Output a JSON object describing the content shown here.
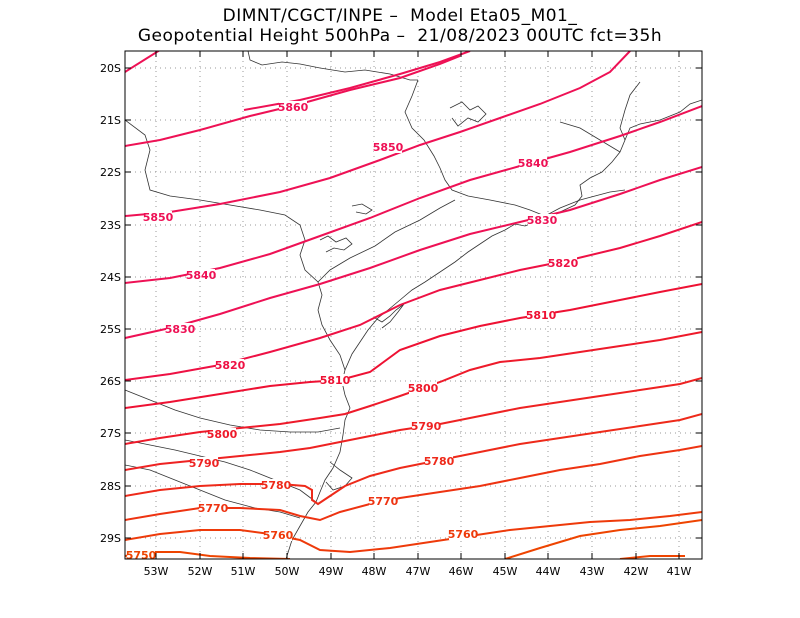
{
  "title": {
    "line1": "DIMNT/CGCT/INPE –  Model Eta05_M01_",
    "line2": "Geopotential Height 500hPa –  21/08/2023 00UTC fct=35h"
  },
  "axes": {
    "lat_labels": [
      "20S",
      "21S",
      "22S",
      "23S",
      "24S",
      "25S",
      "26S",
      "27S",
      "28S",
      "29S"
    ],
    "lon_labels": [
      "53W",
      "52W",
      "51W",
      "50W",
      "49W",
      "48W",
      "47W",
      "46W",
      "45W",
      "44W",
      "43W",
      "42W",
      "41W"
    ]
  },
  "colors": {
    "high": "#ee1155",
    "mid": "#ee2233",
    "low": "#ee3311",
    "coast": "#333333",
    "grid": "#999999"
  },
  "contours": [
    {
      "value": 5860,
      "label": "5860",
      "color": "#ee1155"
    },
    {
      "value": 5850,
      "label": "5850",
      "color": "#ee1155"
    },
    {
      "value": 5840,
      "label": "5840",
      "color": "#ee1155"
    },
    {
      "value": 5830,
      "label": "5830",
      "color": "#ee1155"
    },
    {
      "value": 5820,
      "label": "5820",
      "color": "#ee1144"
    },
    {
      "value": 5810,
      "label": "5810",
      "color": "#ee1133"
    },
    {
      "value": 5800,
      "label": "5800",
      "color": "#ee1a2a"
    },
    {
      "value": 5790,
      "label": "5790",
      "color": "#ee2222"
    },
    {
      "value": 5780,
      "label": "5780",
      "color": "#ee2a1a"
    },
    {
      "value": 5770,
      "label": "5770",
      "color": "#ee3311"
    },
    {
      "value": 5760,
      "label": "5760",
      "color": "#ee3a0a"
    },
    {
      "value": 5750,
      "label": "5750",
      "color": "#ee4400"
    }
  ]
}
